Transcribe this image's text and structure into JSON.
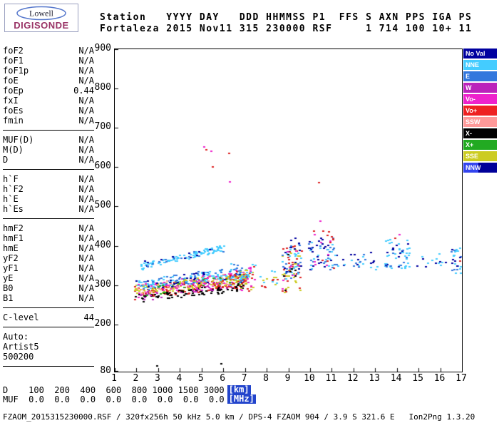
{
  "logo": {
    "name": "Lowell",
    "brand": "DIGISONDE"
  },
  "header": {
    "line1": "Station   YYYY DAY   DDD HHMMSS P1  FFS S AXN PPS IGA PS",
    "line2": "Fortaleza 2015 Nov11 315 230000 RSF     1 714 100 10+ 11"
  },
  "left_panel": {
    "groups": [
      [
        {
          "label": "foF2",
          "value": "N/A"
        },
        {
          "label": "foF1",
          "value": "N/A"
        },
        {
          "label": "foF1p",
          "value": "N/A"
        },
        {
          "label": "foE",
          "value": "N/A"
        },
        {
          "label": "foEp",
          "value": "0.44"
        },
        {
          "label": "fxI",
          "value": "N/A"
        },
        {
          "label": "foEs",
          "value": "N/A"
        },
        {
          "label": "fmin",
          "value": "N/A"
        }
      ],
      [
        {
          "label": "MUF(D)",
          "value": "N/A"
        },
        {
          "label": "M(D)",
          "value": "N/A"
        },
        {
          "label": "D",
          "value": "N/A"
        }
      ],
      [
        {
          "label": "h`F",
          "value": "N/A"
        },
        {
          "label": "h`F2",
          "value": "N/A"
        },
        {
          "label": "h`E",
          "value": "N/A"
        },
        {
          "label": "h`Es",
          "value": "N/A"
        }
      ],
      [
        {
          "label": "hmF2",
          "value": "N/A"
        },
        {
          "label": "hmF1",
          "value": "N/A"
        },
        {
          "label": "hmE",
          "value": "N/A"
        },
        {
          "label": "yF2",
          "value": "N/A"
        },
        {
          "label": "yF1",
          "value": "N/A"
        },
        {
          "label": "yE",
          "value": "N/A"
        },
        {
          "label": "B0",
          "value": "N/A"
        },
        {
          "label": "B1",
          "value": "N/A"
        }
      ],
      [
        {
          "label": "C-level",
          "value": "44"
        }
      ],
      [
        {
          "label": "Auto:",
          "value": ""
        },
        {
          "label": "Artist5",
          "value": ""
        },
        {
          "label": "500200",
          "value": ""
        }
      ]
    ]
  },
  "legend": {
    "items": [
      {
        "label": "No Val",
        "color": "#0000A0"
      },
      {
        "label": "NNE",
        "color": "#44CCFF"
      },
      {
        "label": "E",
        "color": "#3377DD"
      },
      {
        "label": "W",
        "color": "#BB22BB"
      },
      {
        "label": "Vo-",
        "color": "#EE22CC"
      },
      {
        "label": "Vo+",
        "color": "#EE2222"
      },
      {
        "label": "SSW",
        "color": "#FF9999"
      },
      {
        "label": "X-",
        "color": "#000000"
      },
      {
        "label": "X+",
        "color": "#22AA22"
      },
      {
        "label": "SSE",
        "color": "#CCCC22"
      },
      {
        "label": "NNW",
        "color": "#3344EE",
        "color2": "#000099"
      }
    ]
  },
  "chart_data": {
    "type": "scatter",
    "title": "Fortaleza Digisonde ionogram 2015 Nov11 day 315 23:00:00",
    "xlabel": "[MHz]",
    "ylabel": "[km]",
    "xlim": [
      1,
      17
    ],
    "ylim": [
      80,
      900
    ],
    "x_ticks": [
      1,
      2,
      3,
      4,
      5,
      6,
      7,
      8,
      9,
      10,
      11,
      12,
      13,
      14,
      15,
      16,
      17
    ],
    "y_ticks": [
      900,
      800,
      700,
      600,
      500,
      400,
      300,
      200,
      80
    ],
    "grid": false,
    "legend_position": "right",
    "seed": 7,
    "d_muf_table": {
      "d_km": [
        100,
        200,
        400,
        600,
        800,
        1000,
        1500,
        3000
      ],
      "muf_mhz": [
        0.0,
        0.0,
        0.0,
        0.0,
        0.0,
        0.0,
        0.0,
        0.0
      ]
    },
    "clusters": [
      {
        "type": "band",
        "color": "#DD2222",
        "n": 150,
        "x": [
          1.9,
          7.2
        ],
        "h": [
          280,
          312
        ],
        "jitter": 17
      },
      {
        "type": "band",
        "color": "#CCCC22",
        "n": 130,
        "x": [
          1.95,
          7.2
        ],
        "h": [
          287,
          318
        ],
        "jitter": 15
      },
      {
        "type": "band",
        "color": "#000000",
        "n": 85,
        "x": [
          1.9,
          7.0
        ],
        "h": [
          263,
          296
        ],
        "jitter": 11
      },
      {
        "type": "band",
        "color": "#44CCFF",
        "n": 105,
        "x": [
          2.0,
          7.2
        ],
        "h": [
          300,
          334
        ],
        "jitter": 13
      },
      {
        "type": "band",
        "color": "#EE22CC",
        "n": 55,
        "x": [
          2.0,
          7.1
        ],
        "h": [
          281,
          322
        ],
        "jitter": 19
      },
      {
        "type": "band",
        "color": "#BB22BB",
        "n": 38,
        "x": [
          2.0,
          7.0
        ],
        "h": [
          273,
          315
        ],
        "jitter": 17
      },
      {
        "type": "band",
        "color": "#3377DD",
        "n": 50,
        "x": [
          2.2,
          7.2
        ],
        "h": [
          300,
          338
        ],
        "jitter": 14
      },
      {
        "type": "band",
        "color": "#FF9999",
        "n": 42,
        "x": [
          2.0,
          7.1
        ],
        "h": [
          289,
          322
        ],
        "jitter": 15
      },
      {
        "type": "band",
        "color": "#22AA22",
        "n": 18,
        "x": [
          2.1,
          6.8
        ],
        "h": [
          283,
          315
        ],
        "jitter": 13
      },
      {
        "type": "band",
        "color": "#0000A0",
        "n": 26,
        "x": [
          2.0,
          7.0
        ],
        "h": [
          296,
          334
        ],
        "jitter": 15
      },
      {
        "type": "band",
        "color": "#44CCFF",
        "n": 90,
        "x": [
          2.15,
          6.1
        ],
        "h": [
          346,
          396
        ],
        "jitter": 8
      },
      {
        "type": "band",
        "color": "#0000A0",
        "n": 11,
        "x": [
          2.3,
          6.0
        ],
        "h": [
          352,
          396
        ],
        "jitter": 9
      },
      {
        "type": "band",
        "color": "#3377DD",
        "n": 13,
        "x": [
          2.4,
          6.0
        ],
        "h": [
          350,
          392
        ],
        "jitter": 8
      },
      {
        "type": "blob",
        "color": "#DD2222",
        "n": 24,
        "x": [
          6.3,
          7.5
        ],
        "h": [
          282,
          350
        ]
      },
      {
        "type": "blob",
        "color": "#CCCC22",
        "n": 20,
        "x": [
          6.3,
          7.5
        ],
        "h": [
          282,
          346
        ]
      },
      {
        "type": "blob",
        "color": "#44CCFF",
        "n": 18,
        "x": [
          6.3,
          7.5
        ],
        "h": [
          300,
          360
        ]
      },
      {
        "type": "blob",
        "color": "#EE22CC",
        "n": 11,
        "x": [
          6.3,
          7.5
        ],
        "h": [
          286,
          350
        ]
      },
      {
        "type": "blob",
        "color": "#3377DD",
        "n": 11,
        "x": [
          6.4,
          7.5
        ],
        "h": [
          300,
          356
        ]
      },
      {
        "type": "blob",
        "color": "#DD2222",
        "n": 6,
        "x": [
          7.6,
          8.6
        ],
        "h": [
          290,
          330
        ]
      },
      {
        "type": "blob",
        "color": "#44CCFF",
        "n": 6,
        "x": [
          7.6,
          8.6
        ],
        "h": [
          300,
          340
        ]
      },
      {
        "type": "blob",
        "color": "#CCCC22",
        "n": 5,
        "x": [
          7.6,
          8.6
        ],
        "h": [
          292,
          326
        ]
      },
      {
        "type": "blob",
        "color": "#DD2222",
        "n": 28,
        "x": [
          8.7,
          9.6
        ],
        "h": [
          282,
          400
        ]
      },
      {
        "type": "blob",
        "color": "#CCCC22",
        "n": 24,
        "x": [
          8.7,
          9.6
        ],
        "h": [
          282,
          392
        ]
      },
      {
        "type": "blob",
        "color": "#44CCFF",
        "n": 19,
        "x": [
          8.7,
          9.6
        ],
        "h": [
          300,
          402
        ]
      },
      {
        "type": "blob",
        "color": "#3377DD",
        "n": 14,
        "x": [
          8.7,
          9.6
        ],
        "h": [
          310,
          412
        ]
      },
      {
        "type": "blob",
        "color": "#0000A0",
        "n": 14,
        "x": [
          8.75,
          9.6
        ],
        "h": [
          330,
          422
        ]
      },
      {
        "type": "blob",
        "color": "#EE22CC",
        "n": 9,
        "x": [
          8.7,
          9.5
        ],
        "h": [
          290,
          392
        ]
      },
      {
        "type": "blob",
        "color": "#000000",
        "n": 7,
        "x": [
          8.7,
          9.5
        ],
        "h": [
          286,
          380
        ]
      },
      {
        "type": "blob",
        "color": "#0000A0",
        "n": 28,
        "x": [
          9.9,
          11.3
        ],
        "h": [
          340,
          432
        ]
      },
      {
        "type": "blob",
        "color": "#3377DD",
        "n": 18,
        "x": [
          9.9,
          11.3
        ],
        "h": [
          336,
          420
        ]
      },
      {
        "type": "blob",
        "color": "#44CCFF",
        "n": 16,
        "x": [
          10.0,
          11.3
        ],
        "h": [
          336,
          410
        ]
      },
      {
        "type": "blob",
        "color": "#DD2222",
        "n": 11,
        "x": [
          10.0,
          11.2
        ],
        "h": [
          340,
          442
        ]
      },
      {
        "type": "blob",
        "color": "#EE22CC",
        "n": 7,
        "x": [
          10.1,
          11.2
        ],
        "h": [
          350,
          430
        ]
      },
      {
        "type": "blob",
        "color": "#0000A0",
        "n": 11,
        "x": [
          11.5,
          13.1
        ],
        "h": [
          340,
          386
        ]
      },
      {
        "type": "blob",
        "color": "#44CCFF",
        "n": 9,
        "x": [
          11.5,
          13.1
        ],
        "h": [
          340,
          380
        ]
      },
      {
        "type": "blob",
        "color": "#3377DD",
        "n": 6,
        "x": [
          11.6,
          13.0
        ],
        "h": [
          346,
          380
        ]
      },
      {
        "type": "blob",
        "color": "#44CCFF",
        "n": 38,
        "x": [
          13.3,
          14.6
        ],
        "h": [
          340,
          416
        ]
      },
      {
        "type": "blob",
        "color": "#0000A0",
        "n": 11,
        "x": [
          13.3,
          14.6
        ],
        "h": [
          340,
          406
        ]
      },
      {
        "type": "blob",
        "color": "#3377DD",
        "n": 9,
        "x": [
          13.4,
          14.6
        ],
        "h": [
          346,
          410
        ]
      },
      {
        "type": "blob",
        "color": "#44CCFF",
        "n": 8,
        "x": [
          14.9,
          16.3
        ],
        "h": [
          346,
          380
        ]
      },
      {
        "type": "blob",
        "color": "#0000A0",
        "n": 6,
        "x": [
          14.9,
          16.3
        ],
        "h": [
          346,
          378
        ]
      },
      {
        "type": "blob",
        "color": "#44CCFF",
        "n": 13,
        "x": [
          16.5,
          17.0
        ],
        "h": [
          330,
          400
        ]
      },
      {
        "type": "blob",
        "color": "#3377DD",
        "n": 8,
        "x": [
          16.5,
          17.0
        ],
        "h": [
          336,
          396
        ]
      },
      {
        "type": "blob",
        "color": "#0000A0",
        "n": 6,
        "x": [
          16.5,
          17.0
        ],
        "h": [
          330,
          392
        ]
      },
      {
        "type": "points",
        "color": "#DD2222",
        "pts": [
          [
            5.2,
            645
          ],
          [
            5.5,
            600
          ],
          [
            6.25,
            635
          ],
          [
            10.4,
            560
          ],
          [
            16.9,
            362
          ],
          [
            13.9,
            420
          ]
        ]
      },
      {
        "type": "points",
        "color": "#EE22CC",
        "pts": [
          [
            5.1,
            652
          ],
          [
            5.45,
            640
          ],
          [
            6.3,
            562
          ],
          [
            14.1,
            428
          ],
          [
            10.45,
            462
          ]
        ]
      },
      {
        "type": "points",
        "color": "#000000",
        "pts": [
          [
            2.95,
            95
          ],
          [
            5.9,
            100
          ]
        ]
      }
    ]
  },
  "bottom": {
    "d_row": "D    100  200  400  600  800 1000 1500 3000",
    "d_unit": "[km]",
    "muf_row": "MUF  0.0  0.0  0.0  0.0  0.0  0.0  0.0  0.0",
    "muf_unit": "[MHz]",
    "footer": "FZAOM_2015315230000.RSF / 320fx256h 50 kHz 5.0 km / DPS-4 FZAOM 904 / 3.9 S 321.6 E   Ion2Png 1.3.20"
  }
}
